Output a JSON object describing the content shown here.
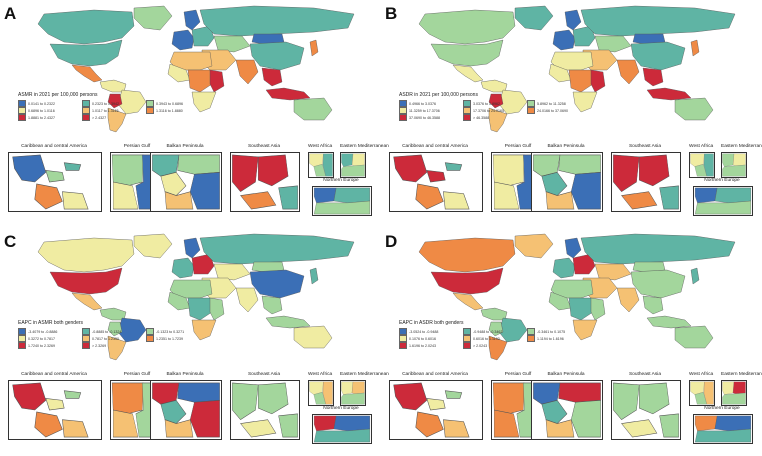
{
  "colors": {
    "c1": "#3b6fb6",
    "c2": "#5fb4a4",
    "c3": "#a3d69c",
    "c4": "#f0eca2",
    "c5": "#f5c173",
    "c6": "#ef8a45",
    "c7": "#cc2a3a",
    "ocean": "#ffffff",
    "border": "#555555"
  },
  "inset_titles": {
    "caribbean": "Caribbean and central America",
    "persian": "Persian Gulf",
    "balkan": "Balkan Peninsula",
    "seasia": "Southeast Asia",
    "westafrica": "West Africa",
    "eastmed": "Eastern Mediterranean",
    "northeu": "Northern Europe"
  },
  "panels": [
    {
      "letter": "A",
      "legend_title": "ASMR in 2021 per 100,000 persons",
      "legend": [
        "0.0141 to 0.2322",
        "0.2323 to 0.3942",
        "0.3943 to 0.6896",
        "0.6896 to 1.0116",
        "1.0117 to 1.3115",
        "1.3116 to 1.8880",
        "1.8881 to 2.4327",
        "> 2.4327"
      ]
    },
    {
      "letter": "B",
      "legend_title": "ASDR in 2021 per 100,000 persons",
      "legend": [
        "0.4966 to 3.0376",
        "3.0376 to 5.8962",
        "5.8962 to 11.3258",
        "11.3259 to 17.3706",
        "17.3706 to 24.0165",
        "24.0166 to 37.0690",
        "37.0690 to 46.3588",
        "> 46.3588"
      ]
    },
    {
      "letter": "C",
      "legend_title": "EAPC in ASMR both genders",
      "legend": [
        "-3.4079 to -0.8886",
        "-0.8885 to -0.1324",
        "-0.1323 to 0.3271",
        "0.3272 to 0.7817",
        "0.7817 to 1.2350",
        "1.2351 to 1.7239",
        "1.7240 to 2.3269",
        "> 2.3269"
      ]
    },
    {
      "letter": "D",
      "legend_title": "EAPC in ASDR both genders",
      "legend": [
        "-3.0524 to -0.9488",
        "-0.9488 to -0.3462",
        "-0.3461 to 0.1075",
        "0.1076 to 0.6016",
        "0.6016 to 1.1193",
        "1.1194 to 1.6196",
        "1.6196 to 2.0243",
        "> 2.0243"
      ]
    }
  ],
  "region_colors": [
    {
      "na": "c2",
      "canada": "c2",
      "greenland": "c3",
      "mexico": "c6",
      "sa_n": "c4",
      "brazil": "c4",
      "sa_s": "c5",
      "bolivia": "c7",
      "eu_w": "c1",
      "eu_e": "c2",
      "scand": "c1",
      "russia": "c2",
      "mideast": "c5",
      "africa_n": "c5",
      "africa_w": "c4",
      "africa_c": "c6",
      "africa_e": "c7",
      "africa_s": "c4",
      "india": "c6",
      "china": "c2",
      "seasia": "c7",
      "indonesia": "c7",
      "japan": "c6",
      "australia": "c3",
      "mongolia": "c1",
      "centralasia": "c3"
    },
    {
      "na": "c3",
      "canada": "c3",
      "greenland": "c2",
      "mexico": "c4",
      "sa_n": "c4",
      "brazil": "c4",
      "sa_s": "c5",
      "bolivia": "c7",
      "eu_w": "c1",
      "eu_e": "c2",
      "scand": "c1",
      "russia": "c2",
      "mideast": "c5",
      "africa_n": "c4",
      "africa_w": "c4",
      "africa_c": "c6",
      "africa_e": "c7",
      "africa_s": "c4",
      "india": "c6",
      "china": "c2",
      "seasia": "c7",
      "indonesia": "c7",
      "japan": "c6",
      "australia": "c3",
      "mongolia": "c1",
      "centralasia": "c3"
    },
    {
      "na": "c7",
      "canada": "c4",
      "greenland": "c4",
      "mexico": "c5",
      "sa_n": "c3",
      "brazil": "c1",
      "sa_s": "c5",
      "bolivia": "c3",
      "eu_w": "c2",
      "eu_e": "c7",
      "scand": "c1",
      "russia": "c2",
      "mideast": "c4",
      "africa_n": "c3",
      "africa_w": "c3",
      "africa_c": "c2",
      "africa_e": "c3",
      "africa_s": "c5",
      "india": "c4",
      "china": "c1",
      "seasia": "c3",
      "indonesia": "c3",
      "japan": "c2",
      "australia": "c4",
      "mongolia": "c3",
      "centralasia": "c4"
    },
    {
      "na": "c7",
      "canada": "c6",
      "greenland": "c5",
      "mexico": "c5",
      "sa_n": "c3",
      "brazil": "c2",
      "sa_s": "c6",
      "bolivia": "c3",
      "eu_w": "c2",
      "eu_e": "c7",
      "scand": "c1",
      "russia": "c2",
      "mideast": "c5",
      "africa_n": "c3",
      "africa_w": "c3",
      "africa_c": "c2",
      "africa_e": "c3",
      "africa_s": "c5",
      "india": "c5",
      "china": "c3",
      "seasia": "c3",
      "indonesia": "c3",
      "japan": "c2",
      "australia": "c3",
      "mongolia": "c3",
      "centralasia": "c5"
    }
  ],
  "inset_colors": [
    {
      "caribbean": [
        "c1",
        "c3",
        "c2",
        "c6",
        "c4"
      ],
      "persian": [
        "c3",
        "c4",
        "c1"
      ],
      "balkan": [
        "c2",
        "c3",
        "c4",
        "c1",
        "c5"
      ],
      "seasia": [
        "c7",
        "c7",
        "c6",
        "c2"
      ],
      "westafrica": [
        "c4",
        "c3",
        "c2"
      ],
      "eastmed": [
        "c2",
        "c4",
        "c3"
      ],
      "northeu": [
        "c1",
        "c2",
        "c3"
      ]
    },
    {
      "caribbean": [
        "c7",
        "c7",
        "c2",
        "c6",
        "c4"
      ],
      "persian": [
        "c4",
        "c4",
        "c1"
      ],
      "balkan": [
        "c3",
        "c3",
        "c2",
        "c1",
        "c5"
      ],
      "seasia": [
        "c7",
        "c7",
        "c6",
        "c2"
      ],
      "westafrica": [
        "c4",
        "c3",
        "c2"
      ],
      "eastmed": [
        "c3",
        "c4",
        "c3"
      ],
      "northeu": [
        "c1",
        "c2",
        "c3"
      ]
    },
    {
      "caribbean": [
        "c7",
        "c4",
        "c3",
        "c6",
        "c5"
      ],
      "persian": [
        "c6",
        "c5",
        "c3"
      ],
      "balkan": [
        "c7",
        "c1",
        "c2",
        "c7",
        "c5"
      ],
      "seasia": [
        "c3",
        "c3",
        "c4",
        "c3"
      ],
      "westafrica": [
        "c4",
        "c3",
        "c5"
      ],
      "eastmed": [
        "c4",
        "c5",
        "c3"
      ],
      "northeu": [
        "c7",
        "c1",
        "c2"
      ]
    },
    {
      "caribbean": [
        "c7",
        "c4",
        "c3",
        "c6",
        "c5"
      ],
      "persian": [
        "c6",
        "c6",
        "c3"
      ],
      "balkan": [
        "c1",
        "c7",
        "c2",
        "c3",
        "c5"
      ],
      "seasia": [
        "c3",
        "c3",
        "c4",
        "c3"
      ],
      "westafrica": [
        "c4",
        "c3",
        "c5"
      ],
      "eastmed": [
        "c4",
        "c7",
        "c3"
      ],
      "northeu": [
        "c6",
        "c1",
        "c2"
      ]
    }
  ]
}
